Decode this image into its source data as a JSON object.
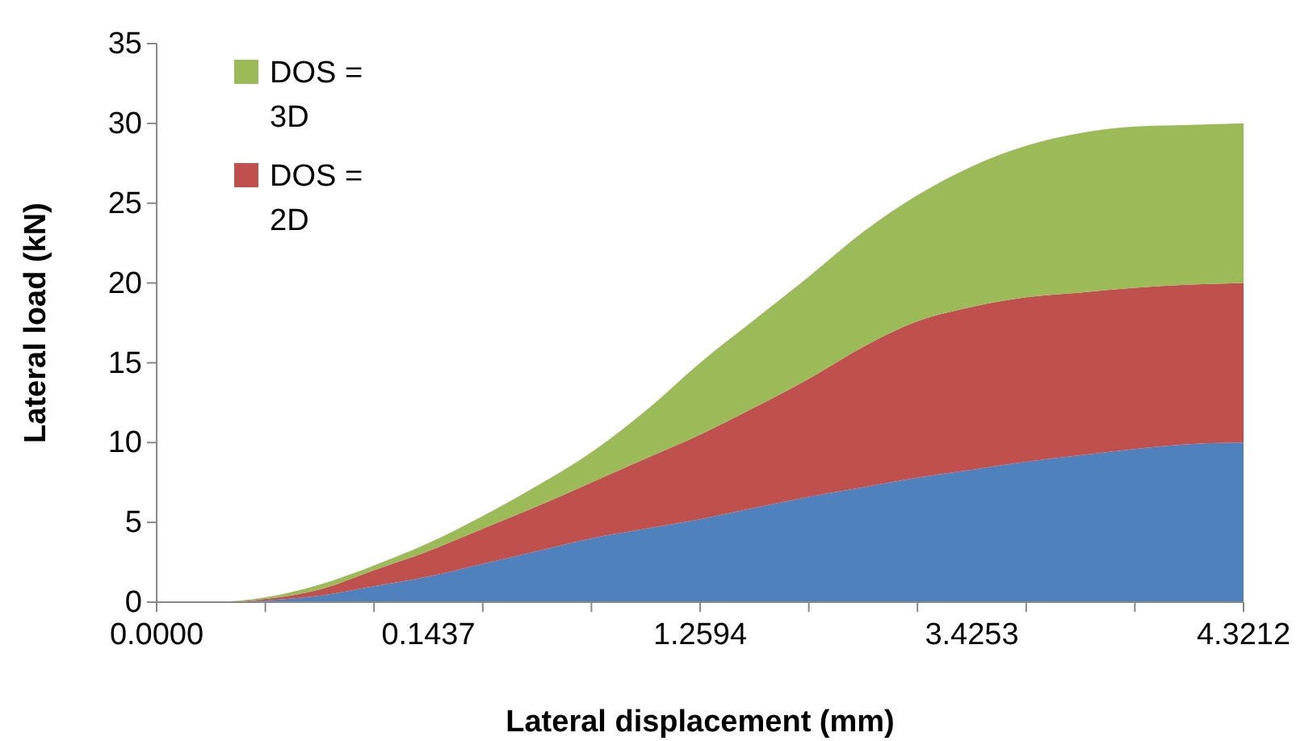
{
  "chart_data": {
    "type": "area",
    "stacked": true,
    "xlabel": "Lateral displacement (mm)",
    "ylabel": "Lateral load (kN)",
    "categories": [
      "0.0000",
      null,
      null,
      null,
      null,
      "0.1437",
      null,
      null,
      null,
      null,
      "1.2594",
      null,
      null,
      null,
      null,
      "3.4253",
      null,
      null,
      null,
      null,
      "4.3212"
    ],
    "series": [
      {
        "color": "#4f81bd",
        "values": [
          0,
          0,
          0.1,
          0.4,
          1.0,
          1.6,
          2.4,
          3.2,
          4.0,
          4.6,
          5.2,
          5.9,
          6.6,
          7.2,
          7.8,
          8.3,
          8.8,
          9.2,
          9.6,
          9.9,
          10
        ]
      },
      {
        "name": "DOS = 2D",
        "color": "#c0504d",
        "values": [
          0,
          0,
          0.1,
          0.4,
          1.0,
          1.6,
          2.2,
          2.8,
          3.5,
          4.4,
          5.3,
          6.3,
          7.4,
          8.8,
          9.8,
          10.2,
          10.3,
          10.2,
          10.1,
          10.0,
          10
        ]
      },
      {
        "name": "DOS = 3D",
        "color": "#9bbb59",
        "values": [
          0,
          0,
          0.1,
          0.3,
          0.3,
          0.5,
          0.8,
          1.3,
          1.9,
          3.0,
          4.5,
          5.5,
          6.4,
          7.2,
          7.9,
          8.8,
          9.5,
          10.0,
          10.1,
          10.0,
          10
        ]
      }
    ],
    "ylim": [
      0,
      35
    ],
    "yticks": [
      0,
      5,
      10,
      15,
      20,
      25,
      30,
      35
    ],
    "legend": "top left"
  }
}
